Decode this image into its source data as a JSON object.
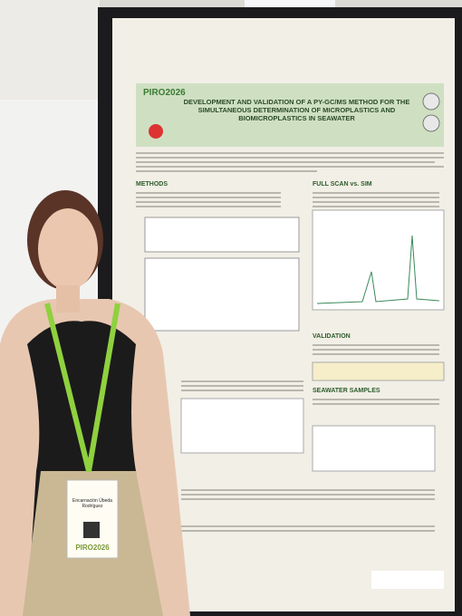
{
  "poster": {
    "logo": "PIRO2026",
    "title": "DEVELOPMENT AND VALIDATION OF A PY-GC/MS METHOD FOR THE SIMULTANEOUS DETERMINATION OF MICROPLASTICS AND BIOMICROPLASTICS IN SEAWATER",
    "sections": [
      "METHODS",
      "FULL SCAN vs. SIM",
      "VALIDATION",
      "SEAWATER SAMPLES"
    ]
  },
  "badge": {
    "name": "Encarnación Úbeda Rodríguez",
    "event": "PIRO2026"
  }
}
